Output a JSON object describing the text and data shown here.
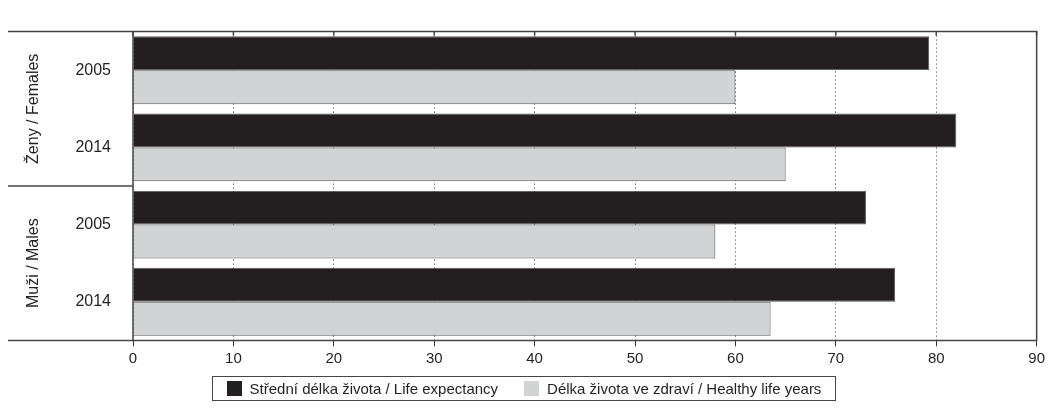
{
  "chart_data": {
    "type": "bar",
    "orientation": "horizontal",
    "categories": [
      "2005",
      "2014",
      "2005",
      "2014"
    ],
    "series": [
      {
        "name": "Střední délka života / Life expectancy",
        "color": "#231f20",
        "values": [
          79.3,
          82.0,
          73.0,
          75.9
        ]
      },
      {
        "name": "Délka života ve zdraví / Healthy life years",
        "color": "#d1d3d4",
        "values": [
          60.0,
          65.0,
          58.0,
          63.5
        ]
      }
    ],
    "xlim": [
      0,
      90
    ],
    "xticks": [
      0,
      10,
      20,
      30,
      40,
      50,
      60,
      70,
      80,
      90
    ],
    "grid": "x",
    "legend": "bottom",
    "annotations": [
      "Ženy / Females",
      "Muži / Males"
    ]
  }
}
